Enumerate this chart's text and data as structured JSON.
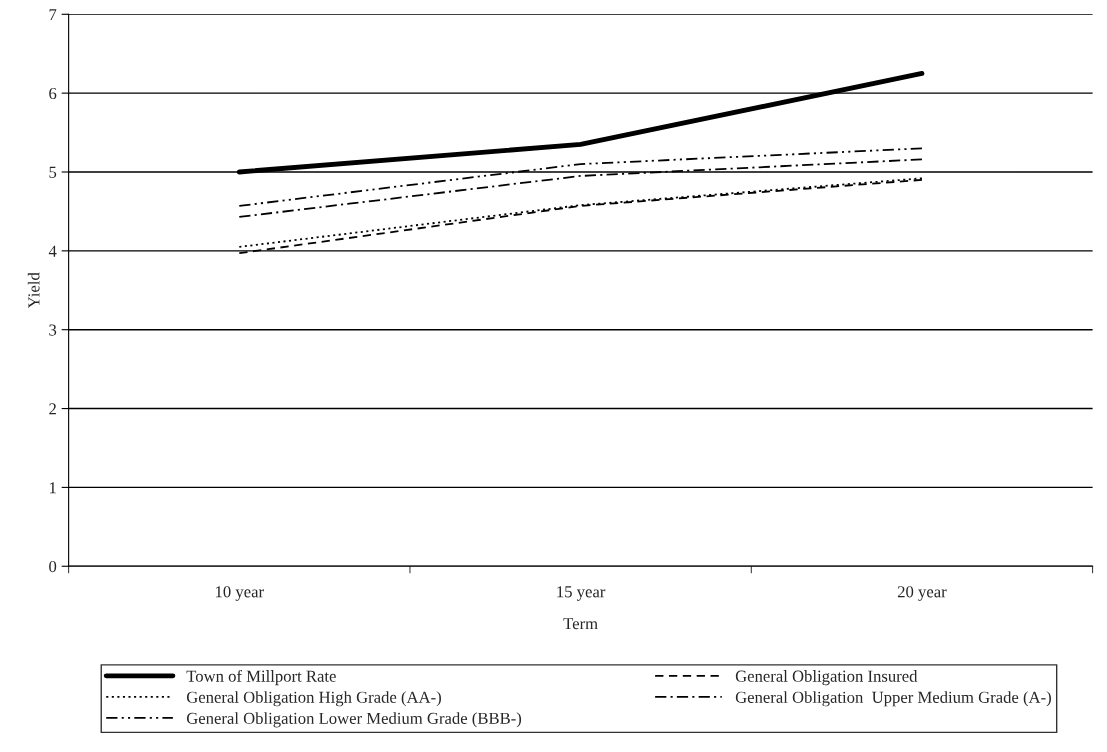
{
  "chart_data": {
    "type": "line",
    "xlabel": "Term",
    "ylabel": "Yield",
    "categories": [
      "10 year",
      "15 year",
      "20 year"
    ],
    "series": [
      {
        "name": "Town of Millport Rate",
        "color": "#000000",
        "line_style": "solid",
        "values": [
          5.0,
          5.35,
          6.25
        ]
      },
      {
        "name": "General Obligation Insured",
        "color": "#000000",
        "line_style": "dashed",
        "values": [
          3.97,
          4.57,
          4.9
        ]
      },
      {
        "name": "General Obligation High Grade (AA-)",
        "color": "#000000",
        "line_style": "dotted",
        "values": [
          4.05,
          4.58,
          4.92
        ]
      },
      {
        "name": "General Obligation  Upper Medium Grade (A-)",
        "color": "#000000",
        "line_style": "dashdot",
        "values": [
          4.43,
          4.95,
          5.16
        ]
      },
      {
        "name": "General Obligation Lower Medium Grade (BBB-)",
        "color": "#000000",
        "line_style": "dashdotdot",
        "values": [
          4.57,
          5.1,
          5.3
        ]
      }
    ],
    "ylim": [
      0,
      7
    ],
    "yticks": [
      0,
      1,
      2,
      3,
      4,
      5,
      6,
      7
    ],
    "grid": "y",
    "legend": "bottom",
    "marker": "none"
  }
}
